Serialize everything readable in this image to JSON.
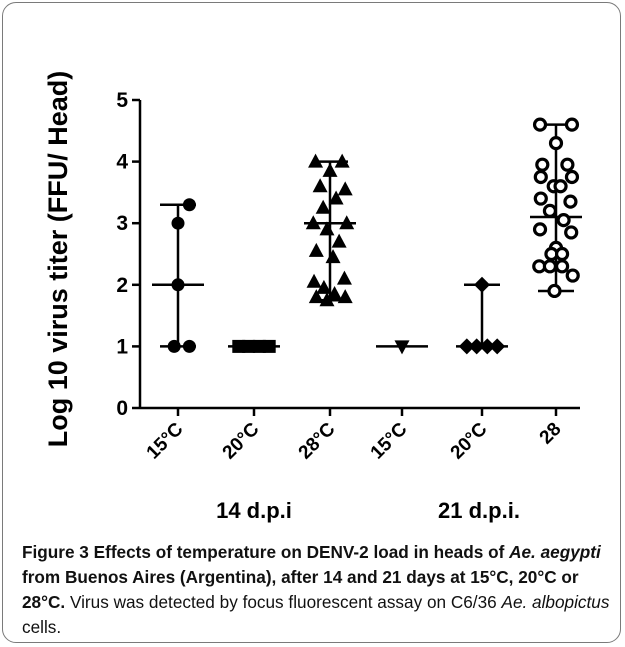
{
  "chart_data": {
    "type": "scatter",
    "ylabel": "Log 10 virus titer (FFU/ Head)",
    "ylim": [
      0,
      5
    ],
    "yticks": [
      0,
      1,
      2,
      3,
      4,
      5
    ],
    "groups": [
      {
        "label": "14 d.p.i",
        "categories": [
          0,
          1,
          2
        ]
      },
      {
        "label": "21 d.p.i.",
        "categories": [
          3,
          4,
          5
        ]
      }
    ],
    "series": [
      {
        "category": "15°C",
        "marker": "circle",
        "filled": true,
        "center": 2.0,
        "range": [
          1.0,
          3.3
        ],
        "points": [
          {
            "dx": 0.15,
            "y": 3.3
          },
          {
            "dx": 0.0,
            "y": 3.0
          },
          {
            "dx": 0.0,
            "y": 2.0
          },
          {
            "dx": -0.05,
            "y": 1.0
          },
          {
            "dx": 0.15,
            "y": 1.0
          }
        ]
      },
      {
        "category": "20°C",
        "marker": "square",
        "filled": true,
        "center": 1.0,
        "range": [
          1.0,
          1.0
        ],
        "points": [
          {
            "dx": -0.2,
            "y": 1.0
          },
          {
            "dx": -0.07,
            "y": 1.0
          },
          {
            "dx": 0.07,
            "y": 1.0
          },
          {
            "dx": 0.2,
            "y": 1.0
          }
        ]
      },
      {
        "category": "28°C",
        "marker": "triangle-up",
        "filled": true,
        "center": 3.0,
        "range": [
          1.75,
          4.0
        ],
        "points": [
          {
            "dx": -0.19,
            "y": 4.0
          },
          {
            "dx": 0.16,
            "y": 4.0
          },
          {
            "dx": 0.0,
            "y": 3.85
          },
          {
            "dx": -0.13,
            "y": 3.6
          },
          {
            "dx": 0.2,
            "y": 3.55
          },
          {
            "dx": 0.08,
            "y": 3.4
          },
          {
            "dx": -0.09,
            "y": 3.25
          },
          {
            "dx": -0.22,
            "y": 3.0
          },
          {
            "dx": 0.22,
            "y": 3.0
          },
          {
            "dx": -0.04,
            "y": 2.9
          },
          {
            "dx": 0.12,
            "y": 2.7
          },
          {
            "dx": -0.18,
            "y": 2.55
          },
          {
            "dx": 0.04,
            "y": 2.45
          },
          {
            "dx": -0.21,
            "y": 2.05
          },
          {
            "dx": 0.19,
            "y": 2.1
          },
          {
            "dx": -0.08,
            "y": 1.95
          },
          {
            "dx": -0.18,
            "y": 1.8
          },
          {
            "dx": 0.06,
            "y": 1.85
          },
          {
            "dx": 0.2,
            "y": 1.8
          },
          {
            "dx": -0.04,
            "y": 1.75
          }
        ]
      },
      {
        "category": "15°C",
        "marker": "triangle-down",
        "filled": true,
        "center": 1.0,
        "range": [
          1.0,
          1.0
        ],
        "points": [
          {
            "dx": 0.0,
            "y": 1.0
          }
        ]
      },
      {
        "category": "20°C",
        "marker": "diamond",
        "filled": true,
        "center": 1.0,
        "range": [
          1.0,
          2.0
        ],
        "points": [
          {
            "dx": 0.0,
            "y": 2.0
          },
          {
            "dx": -0.2,
            "y": 1.0
          },
          {
            "dx": -0.07,
            "y": 1.0
          },
          {
            "dx": 0.07,
            "y": 1.0
          },
          {
            "dx": 0.2,
            "y": 1.0
          }
        ]
      },
      {
        "category": "28",
        "marker": "circle",
        "filled": false,
        "center": 3.1,
        "range": [
          1.9,
          4.6
        ],
        "points": [
          {
            "dx": -0.21,
            "y": 4.6
          },
          {
            "dx": 0.21,
            "y": 4.6
          },
          {
            "dx": 0.0,
            "y": 4.3
          },
          {
            "dx": -0.18,
            "y": 3.95
          },
          {
            "dx": 0.15,
            "y": 3.95
          },
          {
            "dx": -0.2,
            "y": 3.75
          },
          {
            "dx": 0.21,
            "y": 3.75
          },
          {
            "dx": -0.03,
            "y": 3.6
          },
          {
            "dx": 0.06,
            "y": 3.6
          },
          {
            "dx": -0.2,
            "y": 3.4
          },
          {
            "dx": 0.19,
            "y": 3.35
          },
          {
            "dx": -0.08,
            "y": 3.2
          },
          {
            "dx": 0.1,
            "y": 3.05
          },
          {
            "dx": -0.21,
            "y": 2.9
          },
          {
            "dx": 0.2,
            "y": 2.85
          },
          {
            "dx": 0.0,
            "y": 2.6
          },
          {
            "dx": -0.06,
            "y": 2.5
          },
          {
            "dx": 0.08,
            "y": 2.5
          },
          {
            "dx": -0.22,
            "y": 2.3
          },
          {
            "dx": -0.08,
            "y": 2.3
          },
          {
            "dx": 0.08,
            "y": 2.3
          },
          {
            "dx": 0.22,
            "y": 2.15
          },
          {
            "dx": -0.02,
            "y": 1.9
          }
        ]
      }
    ]
  },
  "caption": {
    "bold": "Figure 3 Effects of temperature on DENV-2 load in heads of ",
    "bold_italic_1": "Ae. aegypti",
    "bold_2": " from Buenos Aires (Argentina), after 14 and 21 days at 15°C, 20°C or 28°C.",
    "normal": " Virus was detected by focus fluorescent assay on C6/36 ",
    "italic": "Ae. albopictus",
    "normal_2": " cells."
  }
}
